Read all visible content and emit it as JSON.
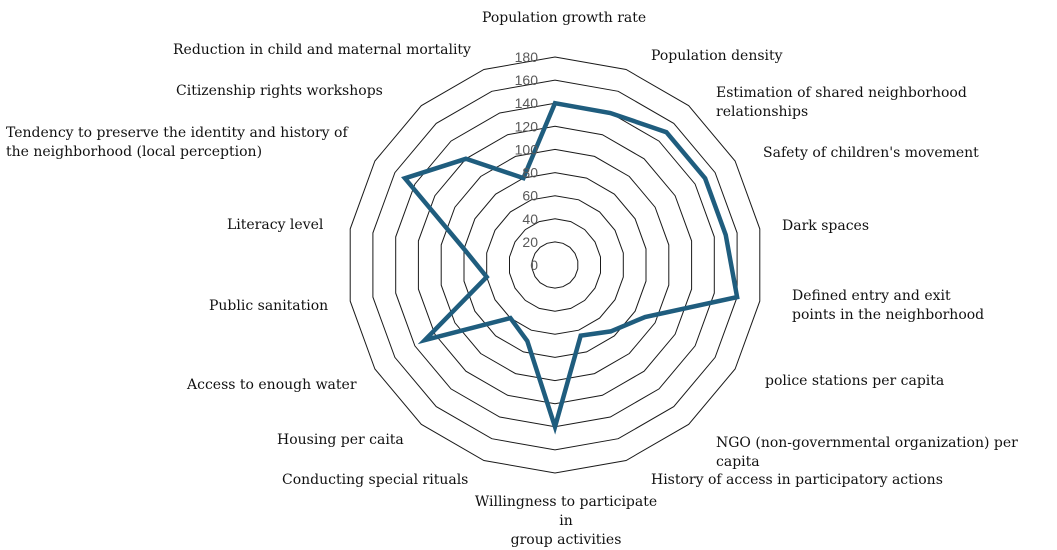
{
  "chart_data": {
    "type": "radar",
    "title": "",
    "categories": [
      "Population growth rate",
      "Population density",
      "Estimation of shared neighborhood relationships",
      "Safety of children's movement",
      "Dark spaces",
      "Defined entry and exit\npoints in the neighborhood",
      "police stations per capita",
      "NGO (non-governmental organization) per capita",
      "History of access in participatory actions",
      "Willingness to participate in\ngroup activities",
      "Conducting special rituals",
      "Housing per caita",
      "Access to enough water",
      "Public sanitation",
      "Literacy level",
      "Tendency to preserve the identity and history of\nthe neighborhood (local perception)",
      "Citizenship rights workshops",
      "Reduction in child and maternal mortality"
    ],
    "series": [
      {
        "values": [
          140,
          140,
          150,
          150,
          150,
          160,
          90,
          75,
          65,
          140,
          70,
          60,
          130,
          60,
          80,
          150,
          120,
          80
        ],
        "color": "#1f5d7e"
      }
    ],
    "rlim": [
      0,
      180
    ],
    "ticks": [
      "0",
      "20",
      "40",
      "60",
      "80",
      "100",
      "120",
      "140",
      "160",
      "180"
    ],
    "grid": true,
    "legend": "none"
  }
}
